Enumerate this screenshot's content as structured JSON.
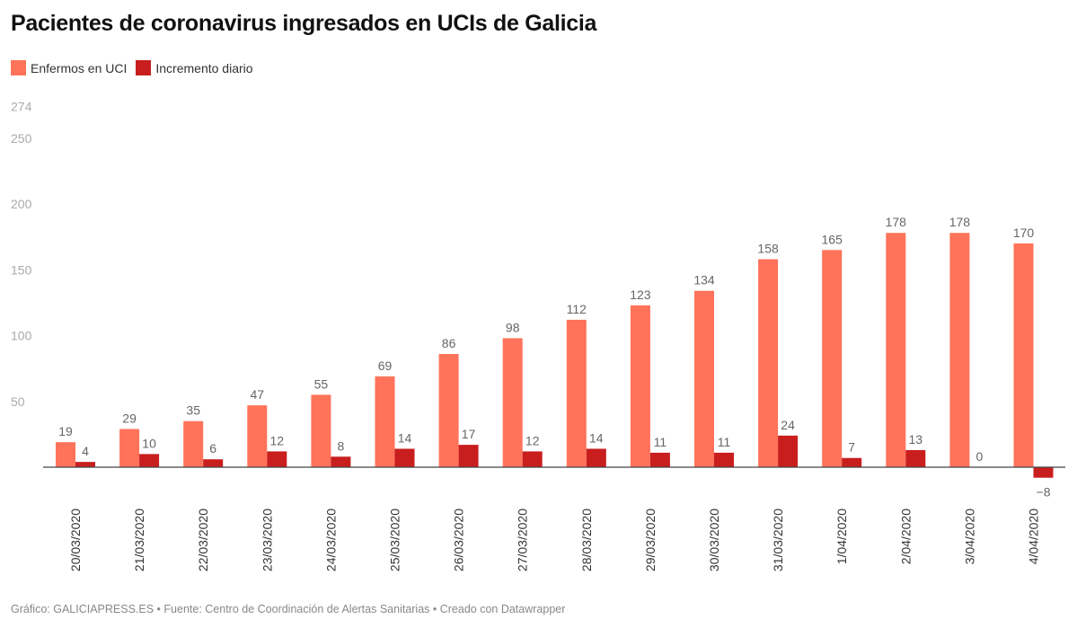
{
  "title": "Pacientes de coronavirus ingresados en UCIs de Galicia",
  "footer": "Gráfico: GALICIAPRESS.ES • Fuente: Centro de Coordinación de Alertas Sanitarias • Creado con Datawrapper",
  "chart_data": {
    "type": "bar",
    "title": "Pacientes de coronavirus ingresados en UCIs de Galicia",
    "categories": [
      "20/03/2020",
      "21/03/2020",
      "22/03/2020",
      "23/03/2020",
      "24/03/2020",
      "25/03/2020",
      "26/03/2020",
      "27/03/2020",
      "28/03/2020",
      "29/03/2020",
      "30/03/2020",
      "31/03/2020",
      "1/04/2020",
      "2/04/2020",
      "3/04/2020",
      "4/04/2020"
    ],
    "series": [
      {
        "name": "Enfermos en UCI",
        "color": "#ff735a",
        "values": [
          19,
          29,
          35,
          47,
          55,
          69,
          86,
          98,
          112,
          123,
          134,
          158,
          165,
          178,
          178,
          170
        ]
      },
      {
        "name": "Incremento diario",
        "color": "#c91e1e",
        "values": [
          4,
          10,
          6,
          12,
          8,
          14,
          17,
          12,
          14,
          11,
          11,
          24,
          7,
          13,
          0,
          -8
        ]
      }
    ],
    "yticks": [
      50,
      100,
      150,
      200,
      250,
      274
    ],
    "ylim": [
      -8,
      274
    ],
    "grid": false,
    "legend": "top-left"
  }
}
